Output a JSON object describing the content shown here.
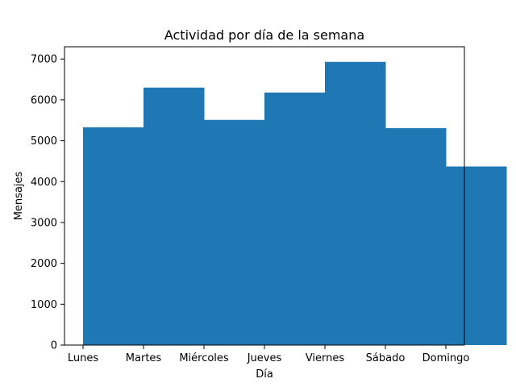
{
  "chart_data": {
    "type": "bar",
    "title": "Actividad por día de la semana",
    "xlabel": "Día",
    "ylabel": "Mensajes",
    "categories": [
      "Lunes",
      "Martes",
      "Miércoles",
      "Jueves",
      "Viernes",
      "Sábado",
      "Domingo"
    ],
    "values": [
      5330,
      6300,
      5510,
      6180,
      6930,
      5310,
      4370
    ],
    "ylim": [
      0,
      7300
    ],
    "yticks": [
      0,
      1000,
      2000,
      3000,
      4000,
      5000,
      6000,
      7000
    ],
    "grid": false,
    "legend": "none",
    "bar_color": "#1f77b4"
  }
}
